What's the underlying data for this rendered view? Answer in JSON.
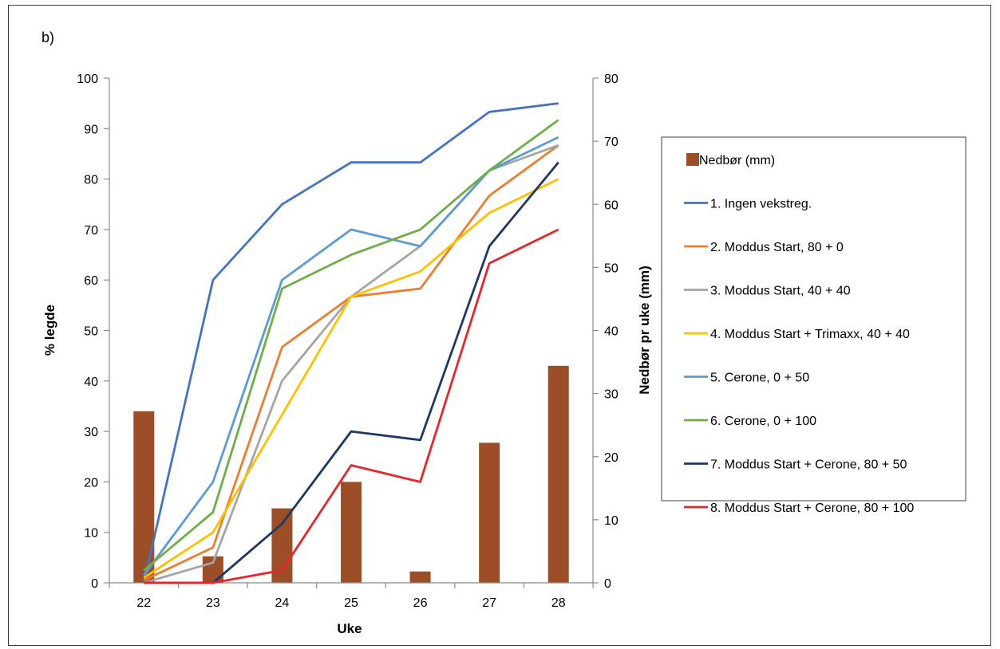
{
  "panel_label": "b)",
  "chart_data": {
    "type": "line",
    "x": [
      "22",
      "23",
      "24",
      "25",
      "26",
      "27",
      "28"
    ],
    "xlabel": "Uke",
    "ylabel": "% legde",
    "ylim": [
      0,
      100
    ],
    "yticks": [
      "0",
      "10",
      "20",
      "30",
      "40",
      "50",
      "60",
      "70",
      "80",
      "90",
      "100"
    ],
    "y2label": "Nedbør pr uke (mm)",
    "y2lim": [
      0,
      80
    ],
    "y2ticks": [
      "0",
      "10",
      "20",
      "30",
      "40",
      "50",
      "60",
      "70",
      "80"
    ],
    "bars": {
      "name": "Nedbør (mm)",
      "axis": "right",
      "color": "#9C4F26",
      "values": [
        27.2,
        4.2,
        11.8,
        16.0,
        1.8,
        22.2,
        34.4
      ]
    },
    "series": [
      {
        "name": "1. Ingen vekstreg.",
        "color": "#4472C4",
        "values": [
          0,
          60,
          75,
          83.3,
          83.3,
          93.3,
          95
        ]
      },
      {
        "name": "2. Moddus Start, 80 + 0",
        "color": "#ED7D31",
        "values": [
          0.5,
          7,
          46.7,
          56.7,
          58.3,
          76.7,
          86.7
        ]
      },
      {
        "name": "3. Moddus Start, 40 + 40",
        "color": "#A5A5A5",
        "values": [
          0,
          4,
          40,
          56.7,
          66.7,
          81.7,
          86.7
        ]
      },
      {
        "name": "4. Moddus Start + Trimaxx, 40 + 40",
        "color": "#FFC000",
        "values": [
          1,
          10,
          33.3,
          56.7,
          61.7,
          73.3,
          80
        ]
      },
      {
        "name": "5. Cerone, 0 + 50",
        "color": "#5B9BD5",
        "values": [
          1.5,
          20,
          60,
          70,
          66.7,
          81.7,
          88.3
        ]
      },
      {
        "name": "6. Cerone, 0 + 100",
        "color": "#70AD47",
        "values": [
          2.5,
          14,
          58.3,
          65,
          70,
          81.7,
          91.7
        ]
      },
      {
        "name": "7. Moddus Start + Cerone, 80 + 50",
        "color": "#203864",
        "values": [
          0,
          0,
          11.7,
          30,
          28.3,
          66.7,
          83.3
        ]
      },
      {
        "name": "8. Moddus Start + Cerone, 80 + 100",
        "color": "#E8252A",
        "values": [
          0,
          0,
          2.5,
          23.3,
          20,
          63.3,
          70
        ]
      }
    ],
    "legend_placement": "right",
    "grid": false
  }
}
